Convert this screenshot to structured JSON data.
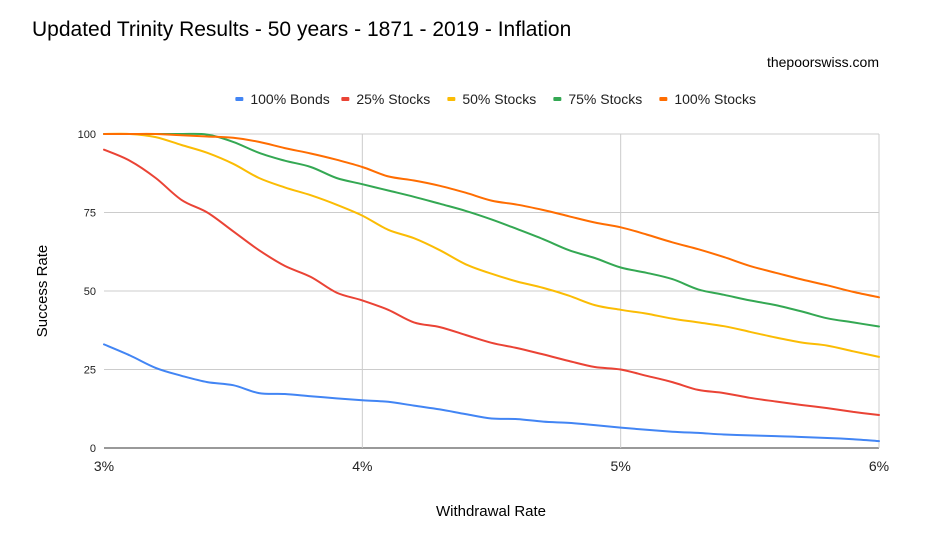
{
  "chart_data": {
    "type": "line",
    "title": "Updated Trinity Results - 50 years - 1871 - 2019 - Inflation",
    "subtitle": "thepoorswiss.com",
    "xlabel": "Withdrawal Rate",
    "ylabel": "Success Rate",
    "x": [
      3.0,
      3.1,
      3.2,
      3.3,
      3.4,
      3.5,
      3.6,
      3.7,
      3.8,
      3.9,
      4.0,
      4.1,
      4.2,
      4.3,
      4.4,
      4.5,
      4.6,
      4.7,
      4.8,
      4.9,
      5.0,
      5.1,
      5.2,
      5.3,
      5.4,
      5.5,
      5.6,
      5.7,
      5.8,
      5.9,
      6.0
    ],
    "xlim": [
      3,
      6
    ],
    "ylim": [
      0,
      100
    ],
    "x_ticks": [
      {
        "value": 3,
        "label": "3%"
      },
      {
        "value": 4,
        "label": "4%"
      },
      {
        "value": 5,
        "label": "5%"
      },
      {
        "value": 6,
        "label": "6%"
      }
    ],
    "y_ticks": [
      {
        "value": 0,
        "label": "0"
      },
      {
        "value": 25,
        "label": "25"
      },
      {
        "value": 50,
        "label": "50"
      },
      {
        "value": 75,
        "label": "75"
      },
      {
        "value": 100,
        "label": "100"
      }
    ],
    "grid": true,
    "legend_position": "top",
    "series": [
      {
        "name": "100% Bonds",
        "color": "#4285f4",
        "values": [
          33,
          29.5,
          25.5,
          23,
          21,
          20,
          17.5,
          17.2,
          16.5,
          15.8,
          15.2,
          14.7,
          13.5,
          12.3,
          10.8,
          9.4,
          9.2,
          8.4,
          8.0,
          7.3,
          6.5,
          5.8,
          5.2,
          4.8,
          4.3,
          4.0,
          3.8,
          3.5,
          3.2,
          2.8,
          2.2
        ]
      },
      {
        "name": "25% Stocks",
        "color": "#ea4335",
        "values": [
          95,
          91.5,
          86,
          79,
          75,
          69,
          63,
          58,
          54.5,
          49.5,
          47,
          44,
          40,
          38.5,
          36,
          33.5,
          31.8,
          29.8,
          27.7,
          25.8,
          25,
          23,
          21,
          18.5,
          17.5,
          16,
          14.8,
          13.7,
          12.7,
          11.5,
          10.5
        ]
      },
      {
        "name": "50% Stocks",
        "color": "#fbbc04",
        "values": [
          100,
          100,
          99,
          96.5,
          94,
          90.5,
          86,
          83,
          80.5,
          77.5,
          74,
          69.5,
          66.8,
          63,
          58.5,
          55.5,
          53,
          51,
          48.5,
          45.5,
          44,
          42.8,
          41.2,
          40,
          38.8,
          37,
          35.2,
          33.6,
          32.6,
          30.8,
          29
        ]
      },
      {
        "name": "75% Stocks",
        "color": "#34a853",
        "values": [
          100,
          100,
          100,
          100,
          99.8,
          97.5,
          94,
          91.5,
          89.5,
          86,
          84,
          82,
          80,
          77.8,
          75.5,
          72.8,
          69.7,
          66.5,
          63,
          60.5,
          57.5,
          55.8,
          53.8,
          50.5,
          48.8,
          47,
          45.5,
          43.5,
          41.3,
          40,
          38.7
        ]
      },
      {
        "name": "100% Stocks",
        "color": "#ff6d01",
        "values": [
          100,
          100,
          100,
          99.6,
          99.2,
          98.8,
          97.5,
          95.5,
          93.8,
          91.8,
          89.5,
          86.5,
          85.2,
          83.5,
          81.3,
          78.8,
          77.5,
          75.8,
          73.8,
          71.8,
          70.3,
          68,
          65.5,
          63.3,
          60.8,
          58,
          55.8,
          53.7,
          51.8,
          49.7,
          48
        ]
      }
    ]
  }
}
